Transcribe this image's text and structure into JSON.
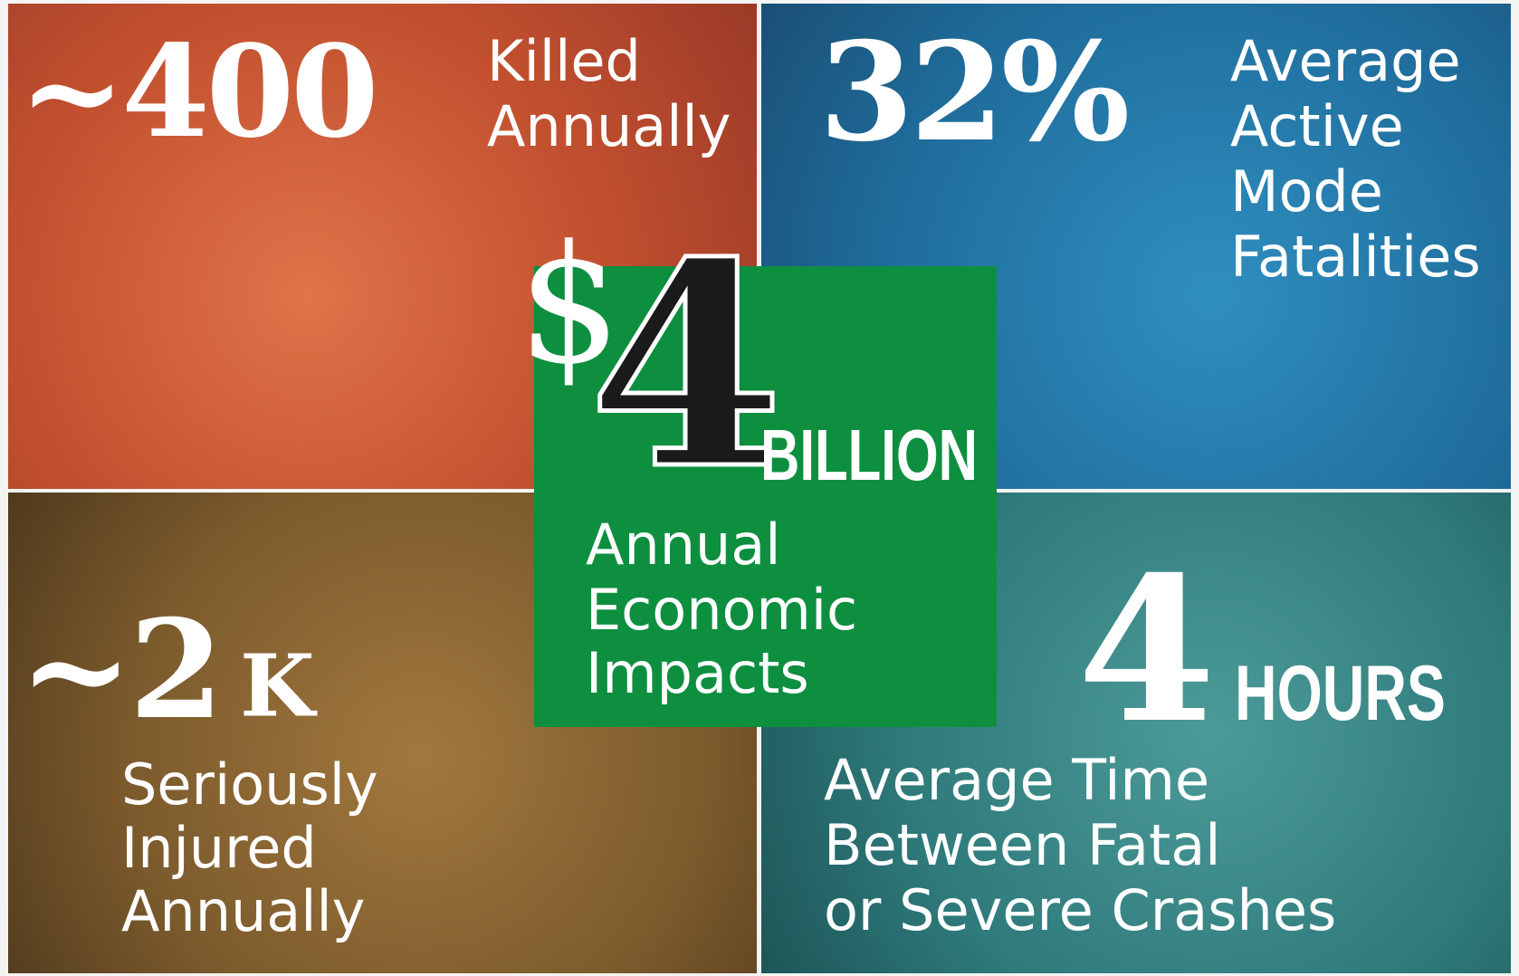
{
  "panels": [
    {
      "stat": "~400",
      "label": [
        "Killed",
        "Annually"
      ]
    },
    {
      "stat": "32%",
      "label": [
        "Average",
        "Active",
        "Mode",
        "Fatalities"
      ]
    },
    {
      "stat": "~2",
      "unit": "K",
      "label": [
        "Seriously",
        "Injured",
        "Annually"
      ]
    },
    {
      "stat": "4",
      "unit": "HOURS",
      "label": [
        "Average Time",
        "Between Fatal",
        "or Severe Crashes"
      ]
    }
  ],
  "center": {
    "prefix": "$",
    "stat": "4",
    "unit": "BILLION",
    "label": [
      "Annual",
      "Economic",
      "Impacts"
    ]
  }
}
